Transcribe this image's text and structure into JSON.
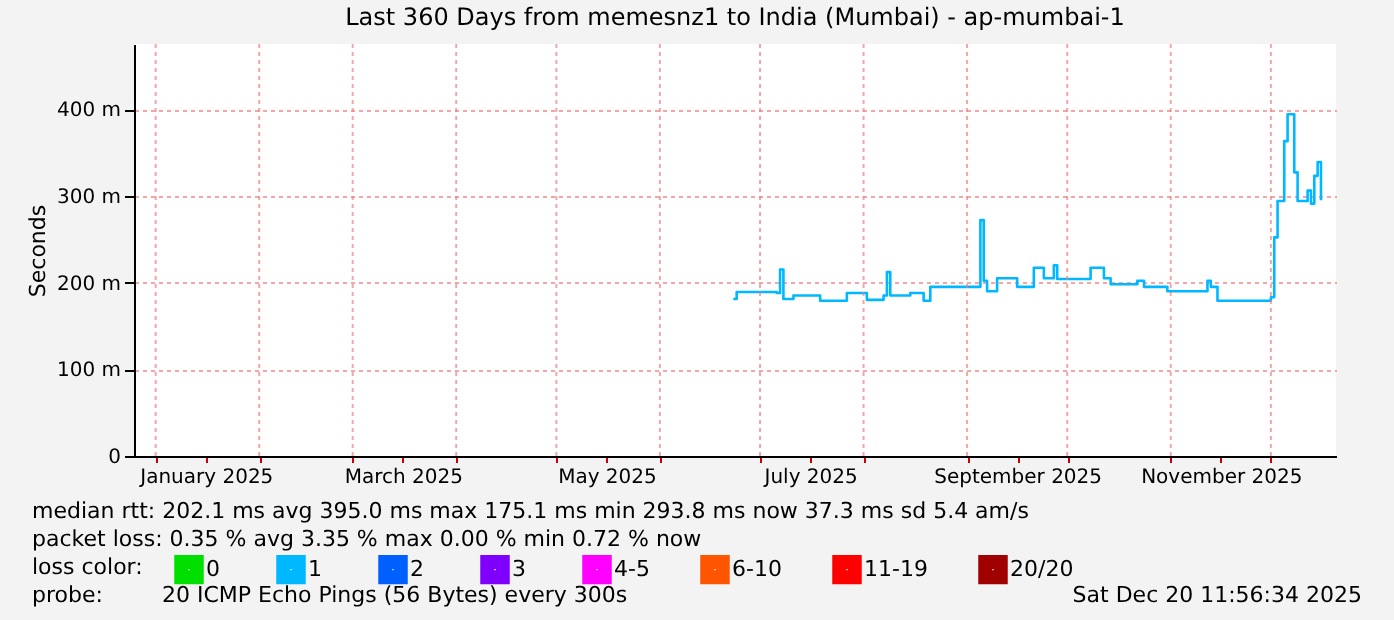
{
  "chart_data": {
    "type": "step",
    "title": "Last 360 Days from memesnz1 to India (Mumbai) - ap-mumbai-1",
    "ylabel": "Seconds",
    "xlim": [
      "2024-12-25T12:00",
      "2025-12-20T12:00"
    ],
    "xticks": [
      {
        "value": "2025-01-01",
        "label": null
      },
      {
        "value": "2025-01-16",
        "label": "January 2025"
      },
      {
        "value": "2025-02-01",
        "label": null
      },
      {
        "value": "2025-03-01",
        "label": null
      },
      {
        "value": "2025-03-16",
        "label": "March 2025"
      },
      {
        "value": "2025-04-01",
        "label": null
      },
      {
        "value": "2025-05-01",
        "label": null
      },
      {
        "value": "2025-05-16",
        "label": "May 2025"
      },
      {
        "value": "2025-06-01",
        "label": null
      },
      {
        "value": "2025-07-01",
        "label": null
      },
      {
        "value": "2025-07-16",
        "label": "July 2025"
      },
      {
        "value": "2025-08-01",
        "label": null
      },
      {
        "value": "2025-09-01",
        "label": null
      },
      {
        "value": "2025-09-16",
        "label": "September 2025"
      },
      {
        "value": "2025-10-01",
        "label": null
      },
      {
        "value": "2025-11-01",
        "label": null
      },
      {
        "value": "2025-11-16",
        "label": "November 2025"
      },
      {
        "value": "2025-12-01",
        "label": null
      }
    ],
    "ylim": [
      0,
      475
    ],
    "yticks": [
      0,
      {
        "value": 100,
        "label": "100 m"
      },
      {
        "value": 200,
        "label": "200 m"
      },
      {
        "value": 300,
        "label": "300 m"
      },
      {
        "value": 400,
        "label": "400 m"
      }
    ],
    "grid": true,
    "legend": "bottom left",
    "legend_title": "loss color:",
    "series": [
      {
        "name": "0",
        "color": "#00e000"
      },
      {
        "name": "1",
        "color": "#00b8ff",
        "x": [
          "2025-06-23",
          "2025-06-24",
          "2025-07-06",
          "2025-07-07",
          "2025-07-08",
          "2025-07-11",
          "2025-07-17",
          "2025-07-19",
          "2025-07-27",
          "2025-08-02",
          "2025-08-07",
          "2025-08-08",
          "2025-08-09",
          "2025-08-15",
          "2025-08-19",
          "2025-08-21",
          "2025-09-04",
          "2025-09-05",
          "2025-09-06",
          "2025-09-07",
          "2025-09-10",
          "2025-09-16",
          "2025-09-21",
          "2025-09-24",
          "2025-09-27",
          "2025-09-28",
          "2025-10-06",
          "2025-10-08",
          "2025-10-12",
          "2025-10-14",
          "2025-10-22",
          "2025-10-24",
          "2025-10-31",
          "2025-11-12",
          "2025-11-13",
          "2025-11-15",
          "2025-11-29",
          "2025-12-01",
          "2025-12-02",
          "2025-12-03",
          "2025-12-04",
          "2025-12-05",
          "2025-12-06",
          "2025-12-07",
          "2025-12-08",
          "2025-12-09",
          "2025-12-11",
          "2025-12-12",
          "2025-12-13",
          "2025-12-14",
          "2025-12-15",
          "2025-12-16"
        ],
        "values": [
          181,
          189,
          188,
          215,
          181,
          185,
          185,
          179,
          188,
          180,
          185,
          212,
          185,
          188,
          179,
          195,
          195,
          272,
          202,
          190,
          205,
          195,
          217,
          205,
          220,
          204,
          204,
          217,
          205,
          198,
          202,
          195,
          190,
          202,
          195,
          179,
          179,
          183,
          252,
          294,
          294,
          363,
          394,
          394,
          327,
          294,
          294,
          306,
          291,
          323,
          339,
          295
        ]
      },
      {
        "name": "2",
        "color": "#0060ff"
      },
      {
        "name": "3",
        "color": "#8000ff"
      },
      {
        "name": "4-5",
        "color": "#ff00ff"
      },
      {
        "name": "6-10",
        "color": "#ff5500"
      },
      {
        "name": "11-19",
        "color": "#ff0000"
      },
      {
        "name": "20/20",
        "color": "#a10000"
      }
    ],
    "annotations": [
      "median rtt:  202.1 ms avg    395.0 ms max    175.1 ms min    293.8 ms now    37.3 ms sd    5.4   am/s",
      "packet loss: 0.35 % avg    3.35 % max    0.00 % min    0.72 % now",
      "probe:",
      "20 ICMP Echo Pings (56 Bytes) every 300s",
      "Sat Dec 20 11:56:34 2025"
    ]
  }
}
